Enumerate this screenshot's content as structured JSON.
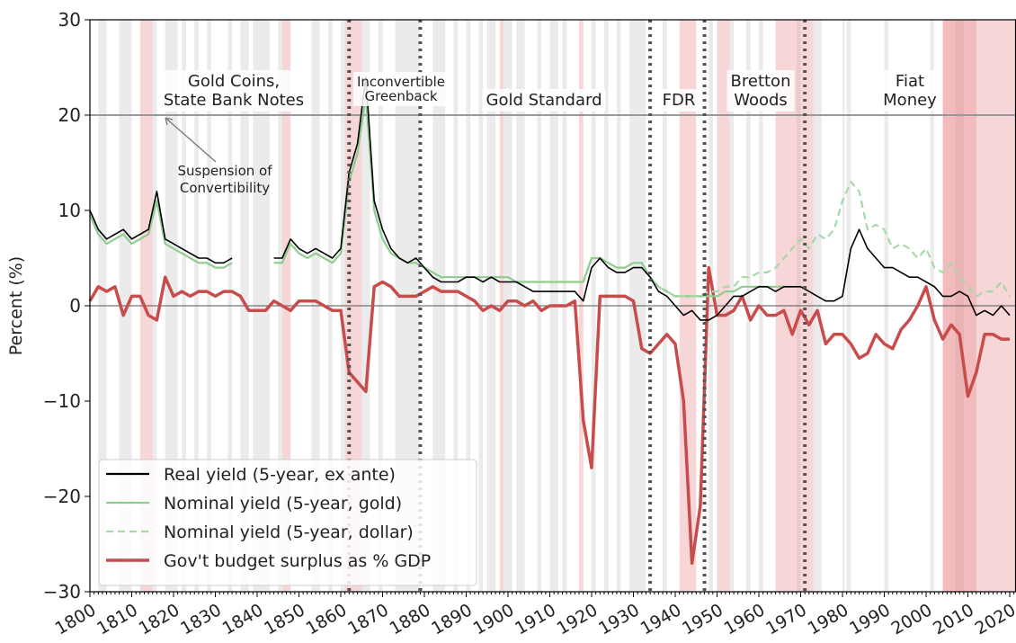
{
  "chart_data": {
    "type": "line",
    "y_label": "Percent (%)",
    "x": [
      1800,
      1802,
      1804,
      1806,
      1808,
      1810,
      1812,
      1814,
      1816,
      1818,
      1820,
      1822,
      1824,
      1826,
      1828,
      1830,
      1832,
      1834,
      1836,
      1838,
      1840,
      1842,
      1844,
      1846,
      1848,
      1850,
      1852,
      1854,
      1856,
      1858,
      1860,
      1862,
      1864,
      1866,
      1868,
      1870,
      1872,
      1874,
      1876,
      1878,
      1880,
      1882,
      1884,
      1886,
      1888,
      1890,
      1892,
      1894,
      1896,
      1898,
      1900,
      1902,
      1904,
      1906,
      1908,
      1910,
      1912,
      1914,
      1916,
      1918,
      1920,
      1922,
      1924,
      1926,
      1928,
      1930,
      1932,
      1934,
      1936,
      1938,
      1940,
      1942,
      1944,
      1946,
      1948,
      1950,
      1952,
      1954,
      1956,
      1958,
      1960,
      1962,
      1964,
      1966,
      1968,
      1970,
      1972,
      1974,
      1976,
      1978,
      1980,
      1982,
      1984,
      1986,
      1988,
      1990,
      1992,
      1994,
      1996,
      1998,
      2000,
      2002,
      2004,
      2006,
      2008,
      2010,
      2012,
      2014,
      2016,
      2018,
      2020
    ],
    "series": [
      {
        "name": "Real yield (5-year, ex ante)",
        "color": "#000000",
        "dash": false,
        "values": [
          10,
          8,
          7,
          7.5,
          8,
          7,
          7.5,
          8,
          12,
          7,
          6.5,
          6,
          5.5,
          5,
          5,
          4.5,
          4.5,
          5,
          null,
          null,
          null,
          null,
          5,
          5,
          7,
          6,
          5.5,
          6,
          5.5,
          5,
          6,
          14,
          17,
          24,
          11,
          8,
          6,
          5,
          4.5,
          5,
          4,
          3,
          2.5,
          2.5,
          2.5,
          3,
          3,
          2.5,
          3,
          2.5,
          2.5,
          2.5,
          2,
          1.5,
          1.5,
          1.5,
          1.5,
          1.5,
          1.5,
          0.5,
          4,
          5,
          4,
          3.5,
          3.5,
          4,
          4,
          3,
          1.5,
          1,
          0,
          -1,
          -0.5,
          -1.5,
          -1.5,
          -1,
          0,
          1,
          1,
          1.5,
          2,
          2,
          1.5,
          2,
          2,
          2,
          1.5,
          1,
          0.5,
          0.5,
          1,
          6,
          8,
          6,
          5,
          4,
          4,
          3.5,
          3,
          3,
          2.5,
          2,
          1,
          1,
          1.5,
          1,
          -1,
          -0.5,
          -1,
          0,
          -1
        ]
      },
      {
        "name": "Nominal yield (5-year, gold)",
        "color": "#8fcc8f",
        "dash": false,
        "values": [
          9.5,
          7.5,
          6.5,
          7,
          7.5,
          6.5,
          7,
          7.5,
          11,
          6.5,
          6,
          5.5,
          5,
          4.5,
          4.5,
          4,
          4,
          4.5,
          null,
          null,
          null,
          null,
          4.5,
          4.5,
          6.5,
          5.5,
          5,
          5.5,
          5,
          4.5,
          5.5,
          13,
          16,
          22,
          10,
          7,
          5.5,
          5,
          4.5,
          4.5,
          4,
          3.5,
          3,
          3,
          3,
          3,
          3,
          3,
          3,
          3,
          3,
          2.5,
          2.5,
          2.5,
          2.5,
          2.5,
          2.5,
          2.5,
          2.5,
          2.5,
          5,
          5,
          4.5,
          4,
          4,
          4.5,
          4.5,
          3,
          2,
          1.5,
          1,
          1,
          1,
          1,
          1,
          1,
          1.5,
          1.5,
          2,
          2,
          2,
          2,
          2,
          2,
          2,
          null,
          null,
          null,
          null,
          null,
          null,
          null,
          null,
          null,
          null,
          null,
          null,
          null,
          null,
          null,
          null,
          null,
          null,
          null,
          null,
          null,
          null,
          null,
          null,
          null,
          null
        ]
      },
      {
        "name": "Nominal yield (5-year, dollar)",
        "color": "#a8d8a8",
        "dash": true,
        "values": [
          null,
          null,
          null,
          null,
          null,
          null,
          null,
          null,
          null,
          null,
          null,
          null,
          null,
          null,
          null,
          null,
          null,
          null,
          null,
          null,
          null,
          null,
          null,
          null,
          null,
          null,
          null,
          null,
          null,
          null,
          null,
          null,
          null,
          null,
          null,
          null,
          null,
          null,
          null,
          null,
          null,
          null,
          null,
          null,
          null,
          null,
          null,
          null,
          null,
          null,
          null,
          null,
          null,
          null,
          null,
          null,
          null,
          null,
          null,
          null,
          null,
          null,
          null,
          null,
          null,
          null,
          null,
          3,
          2,
          1.5,
          1,
          1,
          1,
          1,
          1.5,
          1.5,
          2,
          2,
          3,
          3,
          3.5,
          3.5,
          4,
          5,
          6,
          7,
          6,
          7.5,
          7,
          8,
          11,
          13,
          12,
          8,
          8.5,
          8,
          6,
          6.5,
          6,
          5,
          6,
          4,
          3.5,
          4.5,
          3,
          2,
          1,
          1.5,
          1.5,
          2.5,
          1
        ]
      },
      {
        "name": "Gov't budget surplus as % GDP",
        "color": "#c94c4c",
        "dash": false,
        "values": [
          0.5,
          2,
          1.5,
          2,
          -1,
          1,
          1,
          -1,
          -1.5,
          3,
          1,
          1.5,
          1,
          1.5,
          1.5,
          1,
          1.5,
          1.5,
          1,
          -0.5,
          -0.5,
          -0.5,
          0.5,
          0,
          -0.5,
          0.5,
          0.5,
          0.5,
          0,
          -0.5,
          -0.5,
          -7,
          -8,
          -9,
          2,
          2.5,
          2,
          1,
          1,
          1,
          1.5,
          2,
          1.5,
          1.5,
          1.5,
          1,
          0.5,
          -0.5,
          0,
          -0.5,
          0.5,
          0.5,
          0,
          0.5,
          -0.5,
          0,
          0,
          0,
          0.5,
          -12,
          -17,
          1,
          1,
          1,
          1,
          0.5,
          -4.5,
          -5,
          -4,
          -3,
          -4,
          -10,
          -27,
          -21,
          4,
          -1,
          -1,
          -0.5,
          1,
          -1.5,
          0,
          -1,
          -1,
          -0.5,
          -3,
          -0.5,
          -2,
          -0.5,
          -4,
          -3,
          -3,
          -4,
          -5.5,
          -5,
          -3,
          -4,
          -4.5,
          -2.5,
          -1.5,
          0,
          2,
          -1.5,
          -3.5,
          -2,
          -3,
          -9.5,
          -7,
          -3,
          -3,
          -3.5,
          -3.5
        ]
      }
    ],
    "xlim": [
      1800,
      2021.5
    ],
    "xticks": [
      1800,
      1810,
      1820,
      1830,
      1840,
      1850,
      1860,
      1870,
      1880,
      1890,
      1900,
      1910,
      1920,
      1930,
      1940,
      1950,
      1960,
      1970,
      1980,
      1990,
      2000,
      2010,
      2020
    ],
    "ylim": [
      -30,
      30
    ],
    "yticks": [
      {
        "value": -30,
        "label": "−30"
      },
      {
        "value": -20,
        "label": "−20"
      },
      {
        "value": -10,
        "label": "−10"
      },
      0,
      10,
      20,
      30
    ],
    "vertical_lines": [
      1862,
      1879,
      1934,
      1947,
      1971
    ],
    "grey_shading": [
      [
        1802,
        1804
      ],
      [
        1807,
        1810
      ],
      [
        1815,
        1816
      ],
      [
        1818,
        1821
      ],
      [
        1822,
        1823
      ],
      [
        1825,
        1826
      ],
      [
        1828,
        1829
      ],
      [
        1833,
        1834
      ],
      [
        1836,
        1838
      ],
      [
        1839,
        1843
      ],
      [
        1845,
        1846
      ],
      [
        1853,
        1855
      ],
      [
        1857,
        1858
      ],
      [
        1860,
        1861
      ],
      [
        1865,
        1867
      ],
      [
        1869,
        1870
      ],
      [
        1873,
        1879
      ],
      [
        1882,
        1885
      ],
      [
        1887,
        1888
      ],
      [
        1890,
        1891
      ],
      [
        1893,
        1894
      ],
      [
        1895,
        1897
      ],
      [
        1899,
        1901
      ],
      [
        1902,
        1904
      ],
      [
        1907,
        1908
      ],
      [
        1910,
        1912
      ],
      [
        1913,
        1914
      ],
      [
        1920,
        1921
      ],
      [
        1923,
        1924
      ],
      [
        1926,
        1927
      ],
      [
        1929,
        1933
      ],
      [
        1937,
        1938
      ],
      [
        1948,
        1949
      ],
      [
        1953,
        1954
      ],
      [
        1957,
        1958
      ],
      [
        1960,
        1961
      ],
      [
        1969,
        1970
      ],
      [
        1973,
        1975
      ],
      [
        1980,
        1980.5
      ],
      [
        1981,
        1982
      ],
      [
        1990,
        1991
      ],
      [
        2001,
        2001.9
      ],
      [
        2007,
        2009
      ]
    ],
    "war_shading": [
      [
        1812,
        1815
      ],
      [
        1846,
        1848
      ],
      [
        1861,
        1865
      ],
      [
        1898,
        1899
      ],
      [
        1917,
        1918
      ],
      [
        1941,
        1945
      ],
      [
        1950,
        1953
      ],
      [
        1964,
        1973
      ],
      [
        2004,
        2021.5
      ],
      [
        2004,
        2012
      ]
    ],
    "era_labels": [
      [
        "Gold Coins,",
        "State Bank Notes"
      ],
      [
        "Inconvertible",
        "Greenback"
      ],
      [
        "Gold Standard"
      ],
      [
        "FDR"
      ],
      [
        "Bretton",
        "Woods"
      ],
      [
        "Fiat",
        "Money"
      ]
    ],
    "annotation": [
      "Suspension of",
      "Convertibility"
    ]
  }
}
